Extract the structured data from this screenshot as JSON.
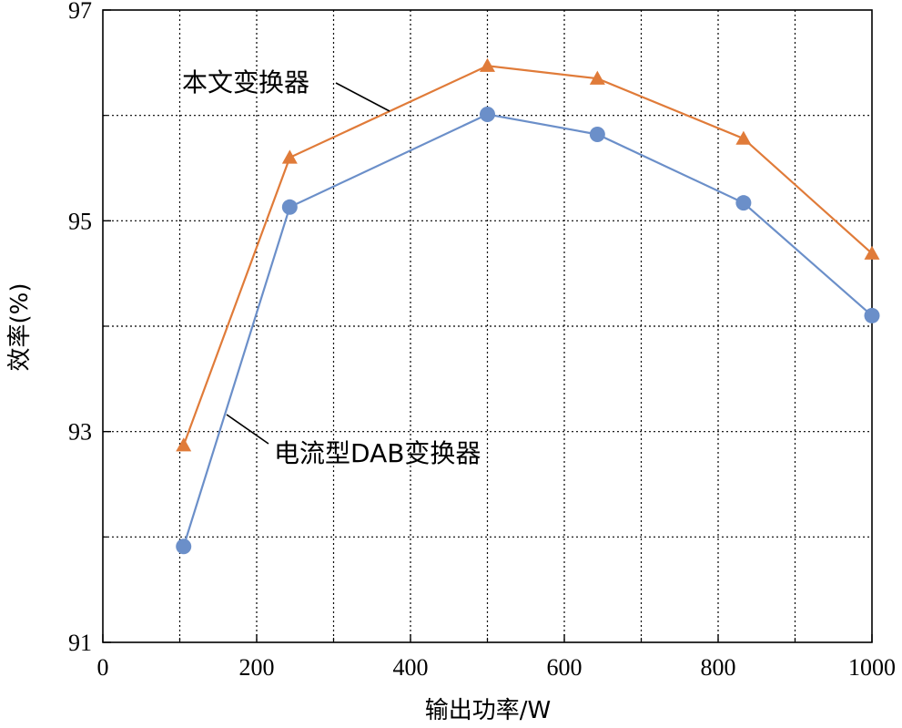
{
  "chart_data": {
    "type": "line",
    "xlabel": "输出功率/W",
    "ylabel": "效率(%)",
    "xlim": [
      0,
      1000
    ],
    "ylim": [
      91,
      97
    ],
    "xticks": [
      0,
      200,
      400,
      600,
      800,
      1000
    ],
    "xminor": [
      100,
      300,
      500,
      700,
      900
    ],
    "yticks": [
      91,
      93,
      95,
      97
    ],
    "yminor": [
      92,
      94,
      96
    ],
    "grid": true,
    "series": [
      {
        "name": "本文变换器",
        "color": "#e07b39",
        "marker": "triangle",
        "x": [
          105,
          243,
          500,
          643,
          833,
          1000
        ],
        "y": [
          92.87,
          95.6,
          96.47,
          96.35,
          95.78,
          94.69
        ]
      },
      {
        "name": "电流型DAB变换器",
        "color": "#6b8fc9",
        "marker": "circle",
        "x": [
          105,
          243,
          500,
          643,
          833,
          1000
        ],
        "y": [
          91.91,
          95.13,
          96.01,
          95.82,
          95.17,
          94.1
        ]
      }
    ],
    "annotations": [
      {
        "series": 0,
        "text": "本文变换器"
      },
      {
        "series": 1,
        "text": "电流型DAB变换器"
      }
    ]
  }
}
